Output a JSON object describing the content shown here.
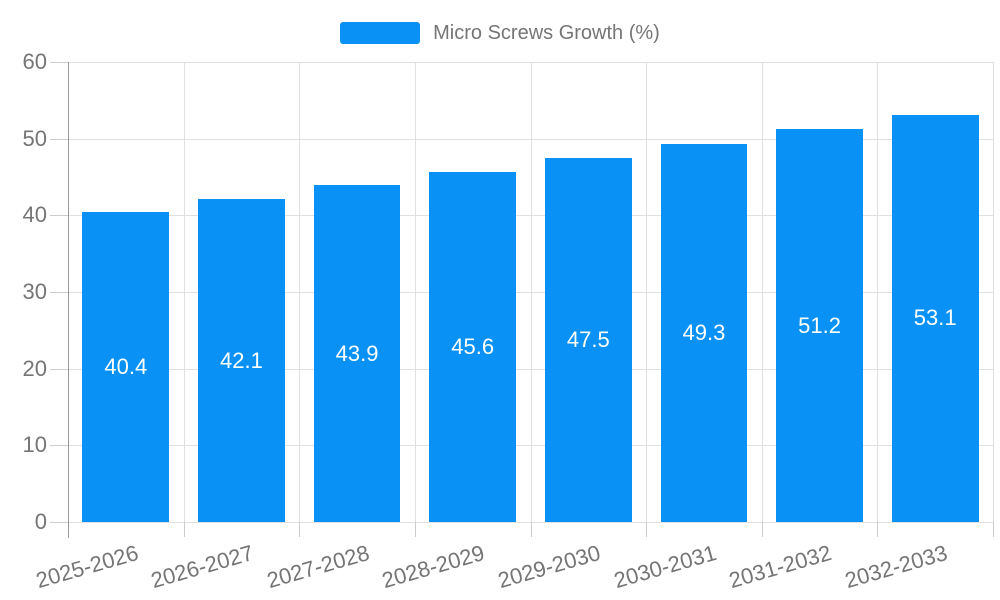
{
  "legend": {
    "label": "Micro Screws Growth (%)"
  },
  "colors": {
    "bar": "#0991F5",
    "value_label": "#FFFFFF",
    "gridline": "#E0E0E0",
    "axis_line": "#999999",
    "tick": "#CCCCCC",
    "text": "#757575"
  },
  "chart_data": {
    "type": "bar",
    "title": "",
    "categories": [
      "2025-2026",
      "2026-2027",
      "2027-2028",
      "2028-2029",
      "2029-2030",
      "2030-2031",
      "2031-2032",
      "2032-2033"
    ],
    "series": [
      {
        "name": "Micro Screws Growth (%)",
        "values": [
          40.4,
          42.1,
          43.9,
          45.6,
          47.5,
          49.3,
          51.2,
          53.1
        ]
      }
    ],
    "value_labels": [
      "40.4",
      "42.1",
      "43.9",
      "45.6",
      "47.5",
      "49.3",
      "51.2",
      "53.1"
    ],
    "xlabel": "",
    "ylabel": "",
    "ylim": [
      0,
      60
    ],
    "yticks": [
      0,
      10,
      20,
      30,
      40,
      50,
      60
    ],
    "grid": true,
    "legend_position": "top",
    "bar_width_fraction": 0.75
  }
}
